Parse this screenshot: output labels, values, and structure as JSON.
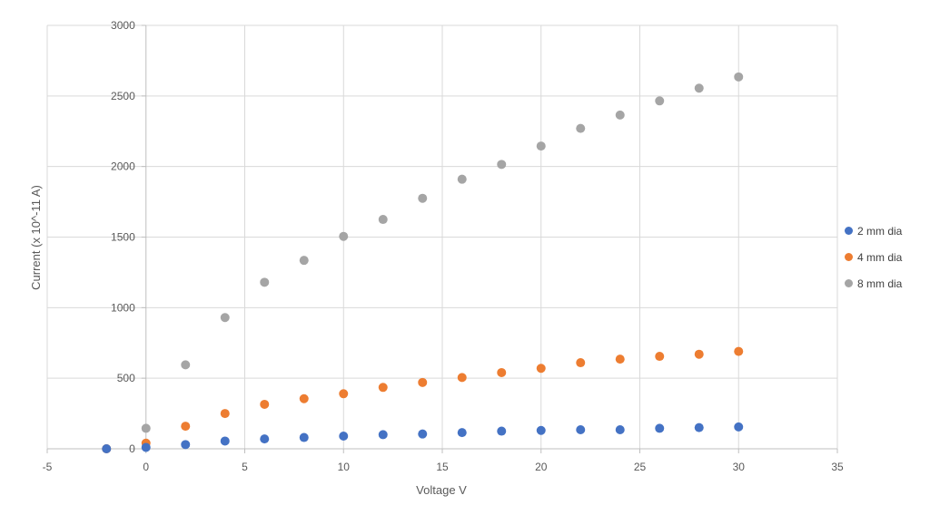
{
  "chart_data": {
    "type": "scatter",
    "xlabel": "Voltage V",
    "ylabel": "Current (x 10^-11 A)",
    "xlim": [
      -5,
      35
    ],
    "ylim": [
      0,
      3000
    ],
    "xticks": [
      "-5",
      "0",
      "5",
      "10",
      "15",
      "20",
      "25",
      "30",
      "35"
    ],
    "yticks": [
      "0",
      "500",
      "1000",
      "1500",
      "2000",
      "2500",
      "3000"
    ],
    "grid": true,
    "legend_position": "right",
    "series": [
      {
        "name": "2 mm dia",
        "color": "#4472C4",
        "x": [
          -2,
          0,
          2,
          4,
          6,
          8,
          10,
          12,
          14,
          16,
          18,
          20,
          22,
          24,
          26,
          28,
          30
        ],
        "y": [
          0,
          10,
          30,
          55,
          70,
          80,
          90,
          100,
          105,
          115,
          125,
          130,
          135,
          135,
          145,
          150,
          155
        ]
      },
      {
        "name": "4 mm dia",
        "color": "#ED7D31",
        "x": [
          -2,
          0,
          2,
          4,
          6,
          8,
          10,
          12,
          14,
          16,
          18,
          20,
          22,
          24,
          26,
          28,
          30
        ],
        "y": [
          0,
          40,
          160,
          250,
          315,
          355,
          390,
          435,
          470,
          505,
          540,
          570,
          610,
          635,
          655,
          670,
          690
        ]
      },
      {
        "name": "8 mm dia",
        "color": "#A5A5A5",
        "x": [
          -2,
          0,
          2,
          4,
          6,
          8,
          10,
          12,
          14,
          16,
          18,
          20,
          22,
          24,
          26,
          28,
          30
        ],
        "y": [
          0,
          145,
          595,
          930,
          1180,
          1335,
          1505,
          1625,
          1775,
          1910,
          2015,
          2145,
          2270,
          2365,
          2465,
          2555,
          2635
        ]
      }
    ]
  }
}
